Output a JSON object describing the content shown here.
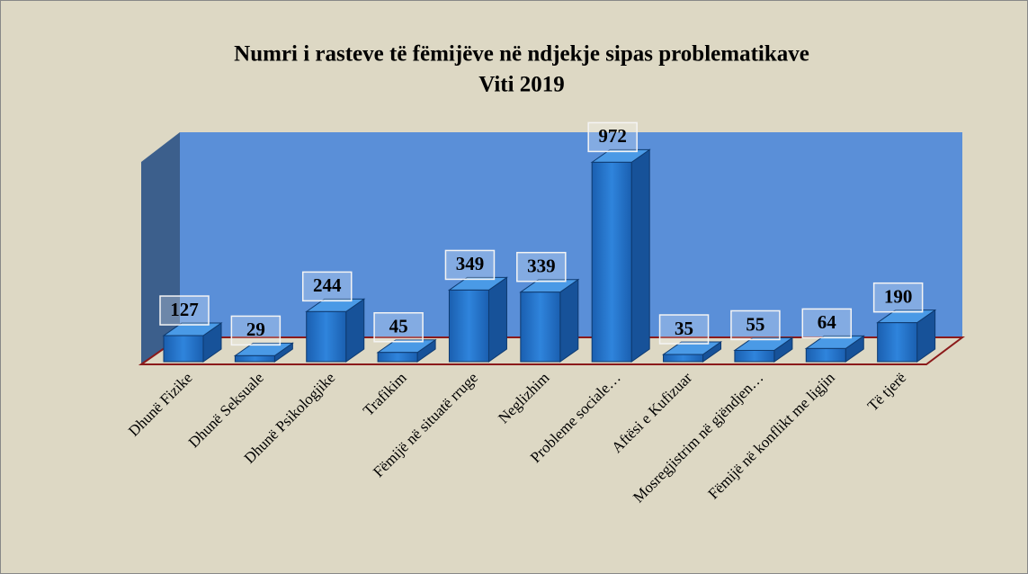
{
  "chart_data": {
    "type": "bar3d",
    "title": "Numri i rasteve të fëmijëve në ndjekje sipas problematikave",
    "subtitle": "Viti 2019",
    "categories": [
      "Dhunë Fizike",
      "Dhunë  Seksuale",
      "Dhunë  Psikologjike",
      "Trafikim",
      "Fëmijë  në  situatë  rruge",
      "Neglizhim",
      "Probleme sociale…",
      "Aftësi e Kufizuar",
      "Mosregjistrim në gjëndjen…",
      "Fëmijë në konflikt me ligjin",
      "Të tjerë"
    ],
    "values": [
      127,
      29,
      244,
      45,
      349,
      339,
      972,
      35,
      55,
      64,
      190
    ],
    "color": "#1f6fc5",
    "ylim": [
      0,
      1000
    ]
  }
}
